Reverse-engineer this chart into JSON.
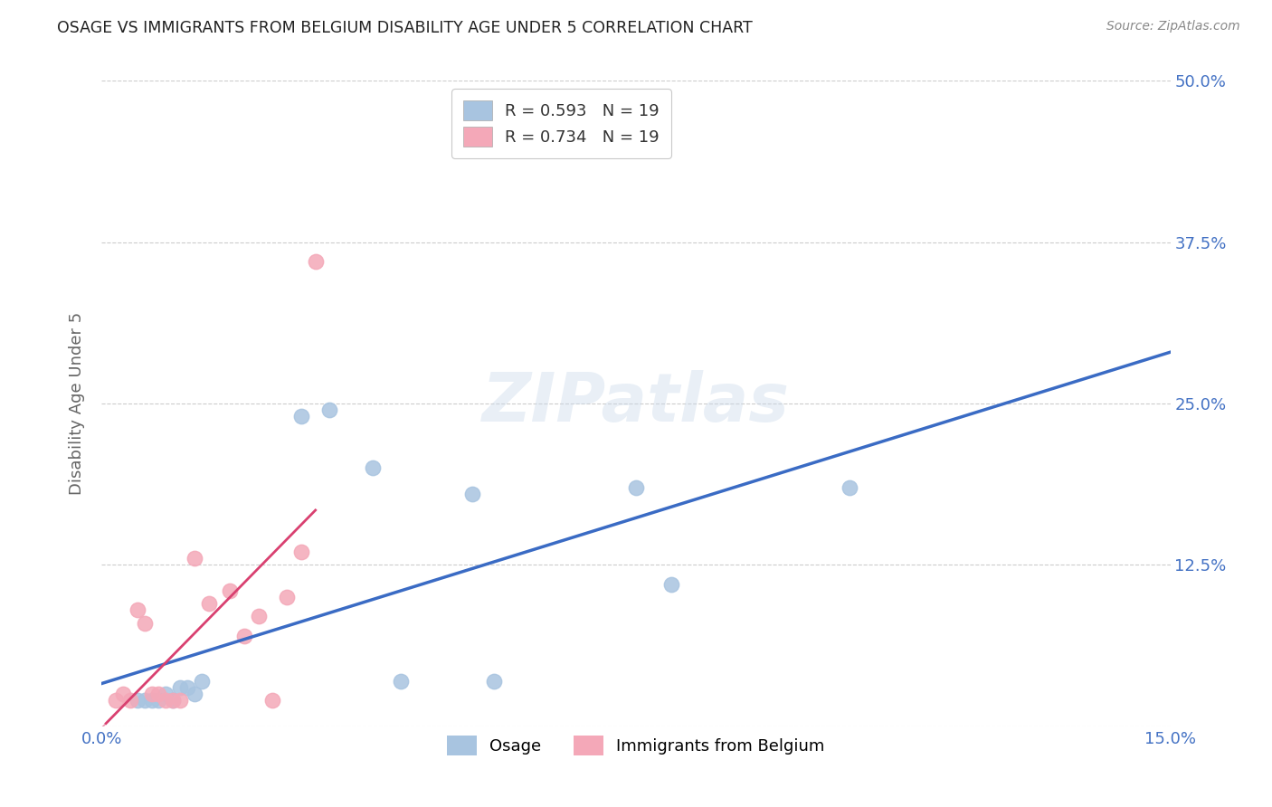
{
  "title": "OSAGE VS IMMIGRANTS FROM BELGIUM DISABILITY AGE UNDER 5 CORRELATION CHART",
  "source": "Source: ZipAtlas.com",
  "ylabel": "Disability Age Under 5",
  "xlim": [
    0.0,
    0.15
  ],
  "ylim": [
    0.0,
    0.5
  ],
  "xticks": [
    0.0,
    0.05,
    0.1,
    0.15
  ],
  "xtick_labels": [
    "0.0%",
    "",
    "",
    "15.0%"
  ],
  "yticks": [
    0.0,
    0.125,
    0.25,
    0.375,
    0.5
  ],
  "ytick_labels": [
    "",
    "12.5%",
    "25.0%",
    "37.5%",
    "50.0%"
  ],
  "osage_x": [
    0.005,
    0.006,
    0.007,
    0.008,
    0.009,
    0.01,
    0.011,
    0.012,
    0.013,
    0.014,
    0.028,
    0.032,
    0.038,
    0.042,
    0.052,
    0.055,
    0.075,
    0.08,
    0.105
  ],
  "osage_y": [
    0.02,
    0.02,
    0.02,
    0.02,
    0.025,
    0.02,
    0.03,
    0.03,
    0.025,
    0.035,
    0.24,
    0.245,
    0.2,
    0.035,
    0.18,
    0.035,
    0.185,
    0.11,
    0.185
  ],
  "belgium_x": [
    0.002,
    0.003,
    0.004,
    0.005,
    0.006,
    0.007,
    0.008,
    0.009,
    0.01,
    0.011,
    0.013,
    0.015,
    0.018,
    0.02,
    0.022,
    0.024,
    0.026,
    0.028,
    0.03
  ],
  "belgium_y": [
    0.02,
    0.025,
    0.02,
    0.09,
    0.08,
    0.025,
    0.025,
    0.02,
    0.02,
    0.02,
    0.13,
    0.095,
    0.105,
    0.07,
    0.085,
    0.02,
    0.1,
    0.135,
    0.36
  ],
  "osage_scatter_color": "#a8c4e0",
  "osage_line_color": "#3a6bc4",
  "belgium_scatter_color": "#f4a8b8",
  "belgium_line_color": "#d94070",
  "legend_osage_R": "R = 0.593",
  "legend_osage_N": "N = 19",
  "legend_belgium_R": "R = 0.734",
  "legend_belgium_N": "N = 19",
  "legend_label_osage": "Osage",
  "legend_label_belgium": "Immigrants from Belgium",
  "watermark": "ZIPatlas",
  "background_color": "#ffffff",
  "grid_color": "#cccccc",
  "title_color": "#222222",
  "axis_label_color": "#666666",
  "tick_label_color": "#4472c4"
}
